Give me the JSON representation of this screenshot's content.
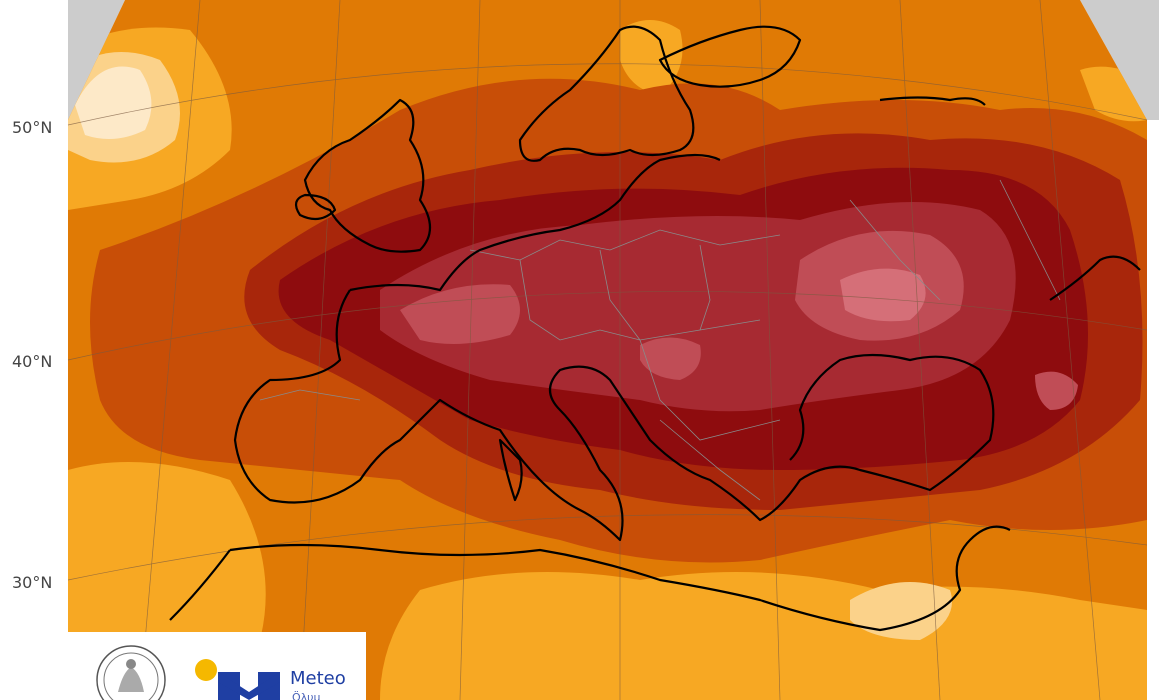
{
  "map": {
    "latitude_labels": [
      "50°N",
      "40°N",
      "30°N"
    ],
    "colors": {
      "background": "#ffffff",
      "land_outside": "#cccccc",
      "level_1": "#fde9c8",
      "level_2": "#fbd28a",
      "level_3": "#f7a823",
      "level_4": "#e07a05",
      "level_5": "#c84e07",
      "level_6": "#a8260b",
      "level_7": "#8e0c0e",
      "level_8": "#a72a32",
      "level_9": "#c04d56",
      "level_10": "#d56f78",
      "coastline": "#000000",
      "borders": "#8a8a8a",
      "graticule": "#7a5a40"
    }
  },
  "logos": {
    "seal_name": "seal-icon",
    "meteo_label": "Meteo",
    "meteo_sub": "Öλυμ",
    "colors": {
      "brand_blue": "#1f3fa3",
      "brand_yellow": "#f5b800"
    }
  }
}
